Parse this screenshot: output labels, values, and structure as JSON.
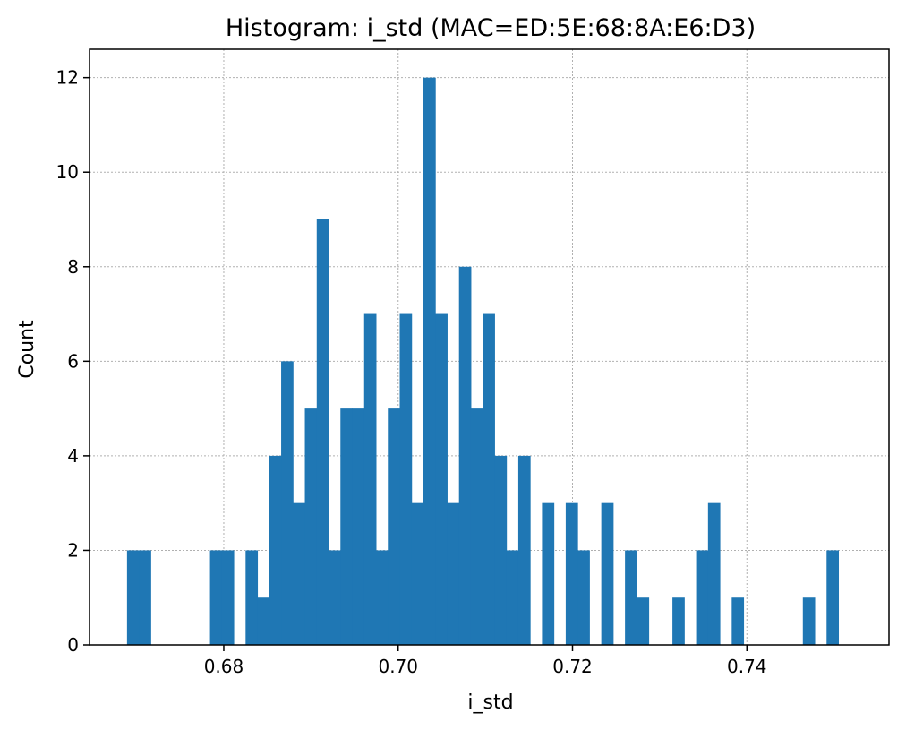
{
  "chart_data": {
    "type": "bar",
    "title": "Histogram: i_std (MAC=ED:5E:68:8A:E6:D3)",
    "xlabel": "i_std",
    "ylabel": "Count",
    "xlim": [
      0.6646,
      0.7563
    ],
    "ylim": [
      0,
      12.6
    ],
    "xticks": [
      "0.68",
      "0.70",
      "0.72",
      "0.74"
    ],
    "yticks": [
      "0",
      "2",
      "4",
      "6",
      "8",
      "10",
      "12"
    ],
    "grid": true,
    "bar_color": "#1f77b4",
    "bin_start": 0.6689,
    "bin_width": 0.00136,
    "counts": [
      2,
      2,
      0,
      0,
      0,
      0,
      0,
      2,
      2,
      0,
      2,
      1,
      4,
      6,
      3,
      5,
      9,
      2,
      5,
      5,
      7,
      2,
      5,
      7,
      3,
      12,
      7,
      3,
      8,
      5,
      7,
      4,
      2,
      4,
      0,
      3,
      0,
      3,
      2,
      0,
      3,
      0,
      2,
      1,
      0,
      0,
      1,
      0,
      2,
      3,
      0,
      1,
      0,
      0,
      0,
      0,
      0,
      1,
      0,
      2
    ]
  }
}
